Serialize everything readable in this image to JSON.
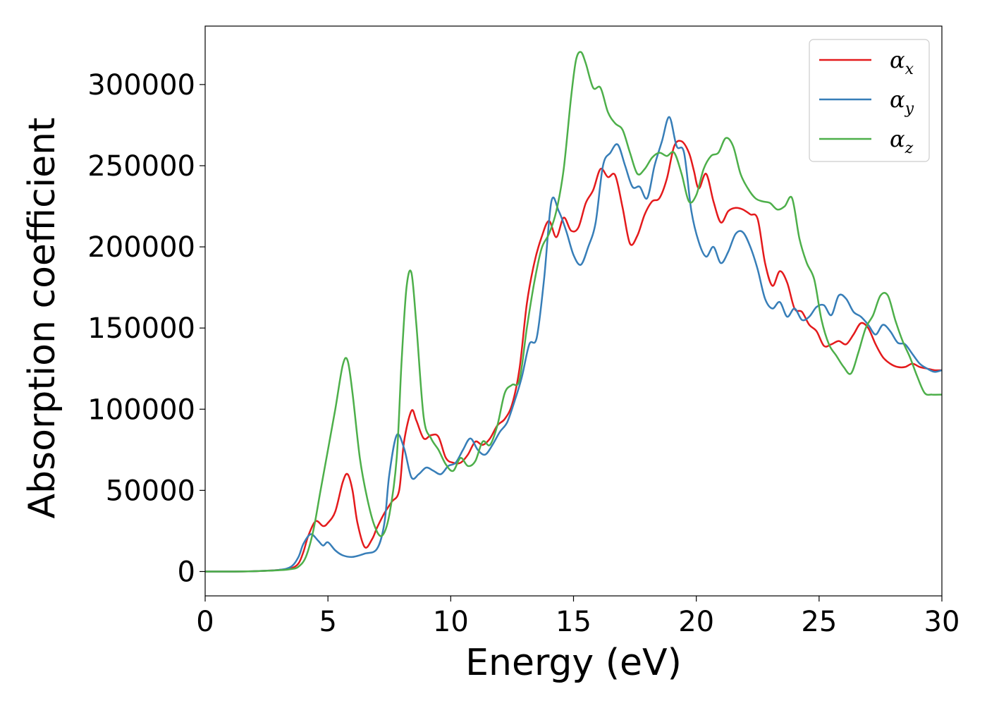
{
  "chart_data": {
    "type": "line",
    "title": "",
    "xlabel": "Energy (eV)",
    "ylabel": "Absorption coefficient",
    "xlim": [
      0,
      30
    ],
    "ylim": [
      -15000,
      336000
    ],
    "xticks": [
      0,
      5,
      10,
      15,
      20,
      25,
      30
    ],
    "yticks": [
      0,
      50000,
      100000,
      150000,
      200000,
      250000,
      300000
    ],
    "grid": false,
    "legend_position": "top-right",
    "series": [
      {
        "name": "αx",
        "label_base": "α",
        "label_sub": "x",
        "color": "#e41a1c",
        "x": [
          0,
          1,
          2,
          3,
          3.5,
          3.8,
          4.0,
          4.2,
          4.5,
          4.8,
          5.0,
          5.3,
          5.6,
          5.8,
          6.0,
          6.2,
          6.5,
          6.8,
          7.0,
          7.3,
          7.6,
          7.9,
          8.1,
          8.4,
          8.6,
          8.9,
          9.2,
          9.5,
          9.8,
          10.1,
          10.4,
          10.7,
          11.0,
          11.3,
          11.6,
          11.9,
          12.2,
          12.5,
          12.8,
          13.1,
          13.4,
          13.7,
          14.0,
          14.3,
          14.6,
          14.9,
          15.2,
          15.5,
          15.8,
          16.1,
          16.4,
          16.7,
          17.0,
          17.3,
          17.6,
          17.9,
          18.2,
          18.5,
          18.8,
          19.1,
          19.4,
          19.7,
          19.9,
          20.1,
          20.4,
          20.7,
          21.0,
          21.3,
          21.6,
          21.9,
          22.2,
          22.5,
          22.8,
          23.1,
          23.4,
          23.7,
          24.0,
          24.3,
          24.6,
          24.9,
          25.2,
          25.5,
          25.8,
          26.1,
          26.4,
          26.7,
          27.0,
          27.3,
          27.6,
          27.9,
          28.2,
          28.5,
          28.8,
          29.1,
          29.4,
          29.7,
          30.0
        ],
        "y": [
          0,
          0,
          200,
          1000,
          2000,
          5000,
          12000,
          22000,
          31000,
          28000,
          30000,
          37000,
          55000,
          60000,
          50000,
          30000,
          15000,
          20000,
          27000,
          36000,
          43000,
          50000,
          80000,
          99000,
          93000,
          82000,
          84000,
          83000,
          70000,
          67000,
          67000,
          72000,
          80000,
          78000,
          82000,
          90000,
          94000,
          103000,
          125000,
          165000,
          190000,
          206000,
          216000,
          206000,
          218000,
          210000,
          212000,
          227000,
          235000,
          248000,
          243000,
          244000,
          224000,
          202000,
          207000,
          220000,
          228000,
          230000,
          242000,
          262000,
          265000,
          258000,
          247000,
          236000,
          245000,
          228000,
          215000,
          222000,
          224000,
          223000,
          220000,
          217000,
          190000,
          176000,
          185000,
          178000,
          162000,
          160000,
          152000,
          148000,
          139000,
          140000,
          142000,
          140000,
          146000,
          153000,
          150000,
          140000,
          132000,
          128000,
          126000,
          126000,
          128000,
          126000,
          125000,
          124000,
          124000
        ]
      },
      {
        "name": "αy",
        "label_base": "α",
        "label_sub": "y",
        "color": "#377eb8",
        "x": [
          0,
          1,
          2,
          3,
          3.5,
          3.8,
          4.0,
          4.3,
          4.6,
          4.8,
          5.0,
          5.3,
          5.6,
          6.0,
          6.5,
          7.0,
          7.3,
          7.5,
          7.8,
          8.1,
          8.4,
          8.7,
          9.0,
          9.3,
          9.6,
          9.9,
          10.2,
          10.5,
          10.8,
          11.1,
          11.4,
          11.7,
          12.0,
          12.3,
          12.6,
          12.9,
          13.2,
          13.5,
          13.8,
          14.1,
          14.4,
          14.7,
          15.0,
          15.3,
          15.6,
          15.9,
          16.2,
          16.5,
          16.8,
          17.1,
          17.4,
          17.7,
          18.0,
          18.3,
          18.6,
          18.9,
          19.2,
          19.5,
          19.8,
          20.1,
          20.4,
          20.7,
          21.0,
          21.3,
          21.6,
          21.9,
          22.2,
          22.5,
          22.8,
          23.1,
          23.4,
          23.7,
          24.0,
          24.3,
          24.6,
          24.9,
          25.2,
          25.5,
          25.8,
          26.1,
          26.4,
          26.7,
          27.0,
          27.3,
          27.6,
          27.9,
          28.2,
          28.5,
          28.8,
          29.1,
          29.4,
          29.7,
          30.0
        ],
        "y": [
          0,
          0,
          200,
          1000,
          3000,
          9000,
          17000,
          23000,
          19000,
          16000,
          18000,
          13000,
          10000,
          9000,
          11000,
          14000,
          30000,
          60000,
          84000,
          76000,
          58000,
          60000,
          64000,
          62000,
          60000,
          65000,
          67000,
          75000,
          82000,
          75000,
          72000,
          78000,
          86000,
          92000,
          105000,
          120000,
          140000,
          144000,
          180000,
          228000,
          222000,
          210000,
          195000,
          189000,
          200000,
          215000,
          250000,
          258000,
          263000,
          250000,
          237000,
          237000,
          230000,
          250000,
          265000,
          280000,
          262000,
          258000,
          222000,
          203000,
          194000,
          200000,
          190000,
          197000,
          208000,
          209000,
          200000,
          186000,
          168000,
          162000,
          166000,
          157000,
          162000,
          155000,
          157000,
          163000,
          164000,
          158000,
          170000,
          168000,
          160000,
          157000,
          152000,
          146000,
          152000,
          148000,
          141000,
          140000,
          134000,
          128000,
          125000,
          123000,
          124000
        ]
      },
      {
        "name": "αz",
        "label_base": "α",
        "label_sub": "z",
        "color": "#4daf4a",
        "x": [
          0,
          1,
          2,
          3,
          3.5,
          3.8,
          4.1,
          4.4,
          4.7,
          5.0,
          5.3,
          5.6,
          5.8,
          6.0,
          6.3,
          6.6,
          6.9,
          7.2,
          7.5,
          7.8,
          8.0,
          8.2,
          8.4,
          8.6,
          8.9,
          9.2,
          9.5,
          9.8,
          10.1,
          10.4,
          10.7,
          11.0,
          11.3,
          11.6,
          11.9,
          12.2,
          12.5,
          12.8,
          13.1,
          13.4,
          13.7,
          14.0,
          14.3,
          14.6,
          14.9,
          15.1,
          15.3,
          15.5,
          15.8,
          16.1,
          16.4,
          16.7,
          17.0,
          17.3,
          17.6,
          17.9,
          18.2,
          18.5,
          18.8,
          19.1,
          19.4,
          19.7,
          20.0,
          20.3,
          20.6,
          20.9,
          21.2,
          21.5,
          21.8,
          22.1,
          22.4,
          22.7,
          23.0,
          23.3,
          23.6,
          23.9,
          24.2,
          24.5,
          24.8,
          25.1,
          25.4,
          25.7,
          26.0,
          26.3,
          26.6,
          26.9,
          27.2,
          27.5,
          27.8,
          28.1,
          28.4,
          28.7,
          29.0,
          29.3,
          29.6,
          30.0
        ],
        "y": [
          0,
          0,
          200,
          800,
          1500,
          3000,
          9000,
          25000,
          50000,
          75000,
          100000,
          127000,
          130000,
          110000,
          70000,
          45000,
          28000,
          22000,
          35000,
          70000,
          130000,
          175000,
          184000,
          152000,
          95000,
          82000,
          75000,
          66000,
          62000,
          70000,
          65000,
          68000,
          80000,
          78000,
          90000,
          110000,
          115000,
          118000,
          150000,
          178000,
          199000,
          208000,
          222000,
          248000,
          292000,
          315000,
          320000,
          313000,
          298000,
          298000,
          283000,
          276000,
          272000,
          258000,
          245000,
          248000,
          255000,
          258000,
          256000,
          258000,
          245000,
          228000,
          232000,
          248000,
          256000,
          258000,
          267000,
          262000,
          245000,
          236000,
          230000,
          228000,
          227000,
          223000,
          225000,
          230000,
          205000,
          190000,
          180000,
          155000,
          140000,
          133000,
          126000,
          122000,
          135000,
          150000,
          158000,
          170000,
          170000,
          155000,
          142000,
          132000,
          120000,
          110000,
          109000,
          109000
        ]
      }
    ]
  }
}
